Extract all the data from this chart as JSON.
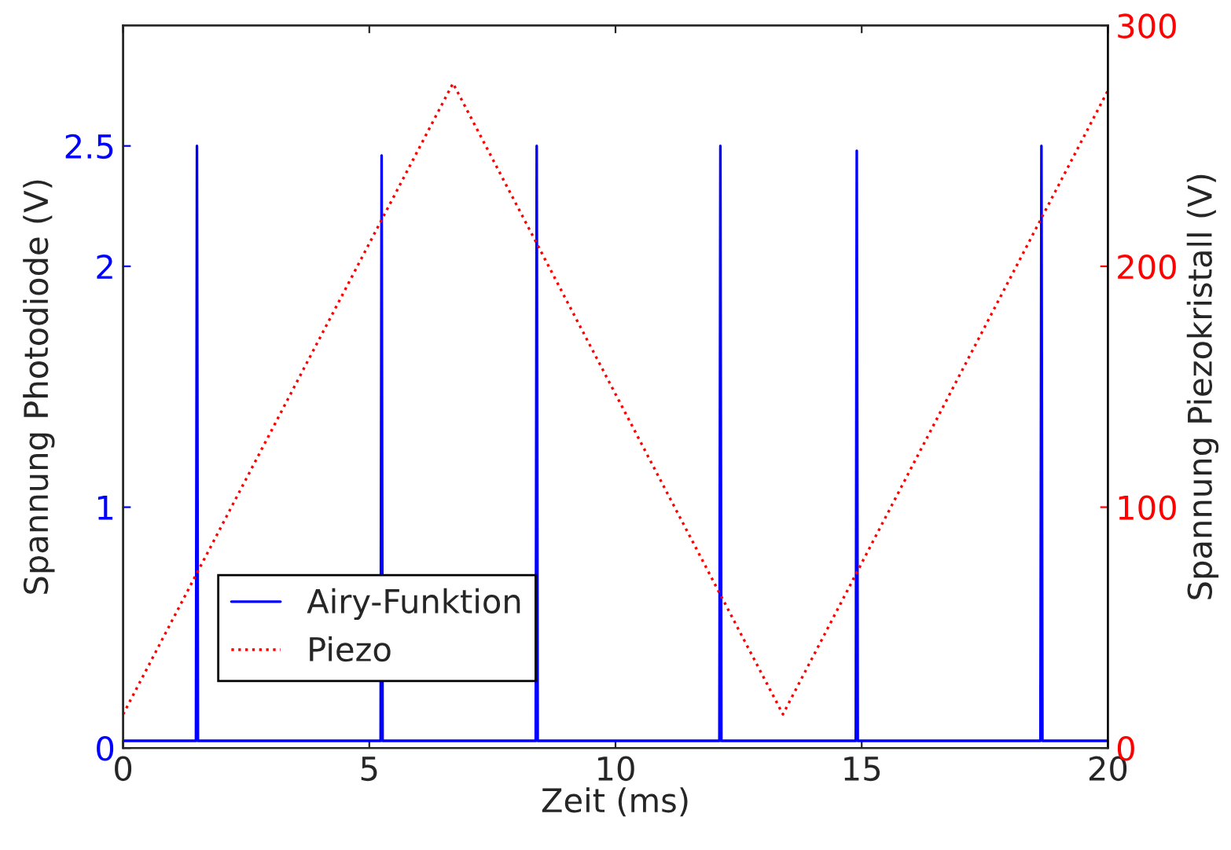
{
  "chart_data": {
    "type": "line",
    "xlabel": "Zeit (ms)",
    "ylabel": "Spannung Photodiode (V)",
    "y2label": "Spannung Piezokristall (V)",
    "xlim": [
      0,
      20
    ],
    "xticks": [
      0,
      5,
      10,
      15,
      20
    ],
    "ylim": [
      0,
      3
    ],
    "yticks": [
      0,
      1,
      2,
      2.5
    ],
    "y2lim": [
      0,
      300
    ],
    "y2ticks": [
      0,
      100,
      200,
      300
    ],
    "grid": false,
    "legend": "bottom left",
    "series": [
      {
        "name": "Airy-Funktion",
        "color": "#0000ff",
        "line_style": "solid",
        "x": [
          0,
          1.48,
          1.5,
          1.52,
          5.23,
          5.25,
          5.27,
          8.38,
          8.4,
          8.42,
          12.11,
          12.13,
          12.15,
          14.88,
          14.9,
          14.92,
          18.63,
          18.65,
          18.67,
          20
        ],
        "values": [
          0.03,
          0.03,
          2.5,
          0.03,
          0.03,
          2.46,
          0.03,
          0.03,
          2.5,
          0.03,
          0.03,
          2.5,
          0.03,
          0.03,
          2.48,
          0.03,
          0.03,
          2.5,
          0.03,
          0.03
        ]
      },
      {
        "name": "Piezo",
        "color": "#ff0000",
        "line_style": "dotted",
        "axis": "y2",
        "x": [
          0,
          6.7,
          13.4,
          20
        ],
        "values": [
          14,
          276,
          14,
          273
        ]
      }
    ]
  }
}
